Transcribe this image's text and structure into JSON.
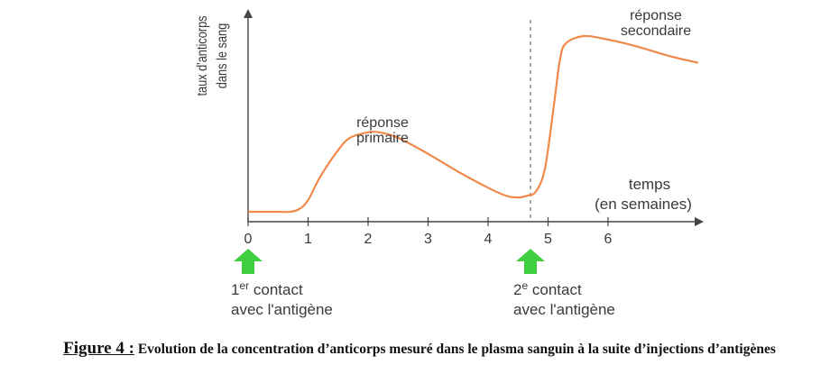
{
  "chart_data": {
    "type": "line",
    "ylabel_lines": [
      "taux d'anticorps",
      "dans le sang"
    ],
    "xlabel_lines": [
      "temps",
      "(en semaines)"
    ],
    "x_ticks": [
      0,
      1,
      2,
      3,
      4,
      5,
      6
    ],
    "xlim": [
      0,
      7.5
    ],
    "ylim": [
      0,
      100
    ],
    "grid": false,
    "series": [
      {
        "color": "#f08a4b",
        "x": [
          0,
          0.5,
          0.7,
          0.85,
          1.0,
          1.2,
          1.5,
          1.7,
          2.0,
          2.2,
          2.5,
          3.0,
          3.5,
          4.0,
          4.3,
          4.5,
          4.65,
          4.8,
          4.95,
          5.1,
          5.2,
          5.3,
          5.6,
          6.0,
          6.5,
          7.0,
          7.5
        ],
        "y": [
          1.5,
          1.5,
          1.5,
          3,
          8,
          21,
          36,
          43,
          46,
          46,
          43,
          34,
          24,
          15,
          10.5,
          9.5,
          10.5,
          13,
          26,
          62,
          87,
          96,
          100,
          98,
          94,
          89,
          85
        ]
      }
    ],
    "annotations": [
      {
        "lines": [
          "réponse",
          "primaire"
        ]
      },
      {
        "lines": [
          "réponse",
          "secondaire"
        ]
      }
    ],
    "events": [
      {
        "x": 0,
        "line1": "1",
        "sup": "er",
        "line1_rest": " contact",
        "line2": "avec l'antigène",
        "arrow_color": "#3fcf3f"
      },
      {
        "x": 4.7,
        "line1": "2",
        "sup": "e",
        "line1_rest": " contact",
        "line2": "avec l'antigène",
        "arrow_color": "#3fcf3f",
        "dashed_line": true
      }
    ]
  },
  "caption": {
    "label": "Figure 4 :",
    "text": "Evolution de la concentration d’anticorps mesuré dans le plasma sanguin à la suite d’injections d’antigènes"
  }
}
